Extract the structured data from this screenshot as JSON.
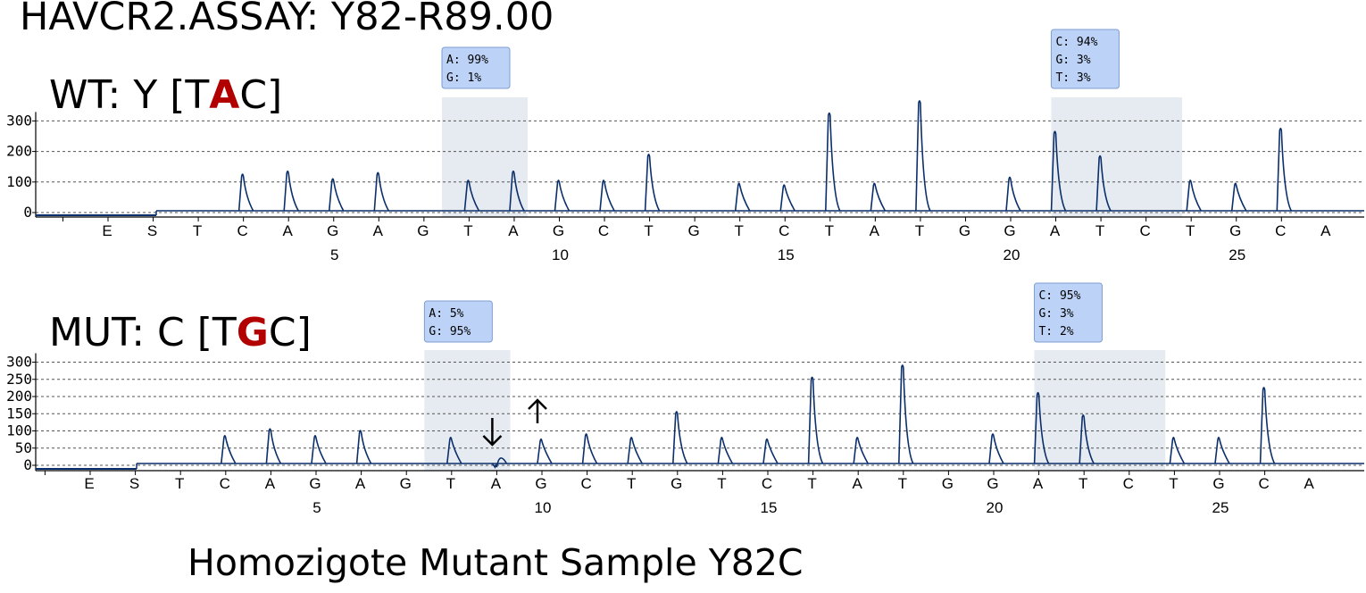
{
  "page_title": "HAVCR2.ASSAY: Y82-R89.00",
  "caption": "Homozigote Mutant Sample Y82C",
  "colors": {
    "trace": "#0b2f6b",
    "highlight_band": "#e6ebf2",
    "tooltip_bg": "#bcd2f6",
    "tooltip_border": "#7f9fd0",
    "mutation_letter": "#b20000"
  },
  "chart_data": [
    {
      "type": "line",
      "label": {
        "prefix": "WT: Y [T",
        "highlight": "A",
        "suffix": "C]"
      },
      "ylim": [
        0,
        380
      ],
      "yticks": [
        0,
        100,
        200,
        300
      ],
      "grid": true,
      "bases": [
        "E",
        "S",
        "T",
        "C",
        "A",
        "G",
        "A",
        "G",
        "T",
        "A",
        "G",
        "C",
        "T",
        "G",
        "T",
        "C",
        "T",
        "A",
        "T",
        "G",
        "G",
        "A",
        "T",
        "C",
        "T",
        "G",
        "C",
        "A"
      ],
      "position_labels": [
        5,
        10,
        15,
        20,
        25
      ],
      "peaks": [
        {
          "x": 4,
          "y": 130
        },
        {
          "x": 5,
          "y": 140
        },
        {
          "x": 6,
          "y": 115
        },
        {
          "x": 7,
          "y": 135
        },
        {
          "x": 9,
          "y": 110
        },
        {
          "x": 10,
          "y": 140
        },
        {
          "x": 11,
          "y": 110
        },
        {
          "x": 12,
          "y": 110
        },
        {
          "x": 13,
          "y": 195
        },
        {
          "x": 15,
          "y": 100
        },
        {
          "x": 16,
          "y": 95
        },
        {
          "x": 17,
          "y": 330
        },
        {
          "x": 18,
          "y": 100
        },
        {
          "x": 19,
          "y": 370
        },
        {
          "x": 21,
          "y": 120
        },
        {
          "x": 22,
          "y": 270
        },
        {
          "x": 23,
          "y": 190
        },
        {
          "x": 25,
          "y": 110
        },
        {
          "x": 26,
          "y": 100
        },
        {
          "x": 27,
          "y": 280
        }
      ],
      "highlight_regions": [
        [
          8.3,
          10.2
        ],
        [
          21.8,
          24.7
        ]
      ],
      "tooltips": [
        {
          "at": 8.3,
          "lines": [
            "A: 99%",
            "G: 1%"
          ]
        },
        {
          "at": 21.8,
          "lines": [
            "C: 94%",
            "G: 3%",
            "T: 3%"
          ]
        }
      ],
      "arrows": []
    },
    {
      "type": "line",
      "label": {
        "prefix": "MUT: C [T",
        "highlight": "G",
        "suffix": "C]"
      },
      "ylim": [
        0,
        320
      ],
      "yticks": [
        0,
        50,
        100,
        150,
        200,
        250,
        300
      ],
      "grid": true,
      "bases": [
        "E",
        "S",
        "T",
        "C",
        "A",
        "G",
        "A",
        "G",
        "T",
        "A",
        "G",
        "C",
        "T",
        "G",
        "T",
        "C",
        "T",
        "A",
        "T",
        "G",
        "G",
        "A",
        "T",
        "C",
        "T",
        "G",
        "C",
        "A"
      ],
      "position_labels": [
        5,
        10,
        15,
        20,
        25
      ],
      "peaks": [
        {
          "x": 4,
          "y": 90
        },
        {
          "x": 5,
          "y": 110
        },
        {
          "x": 6,
          "y": 90
        },
        {
          "x": 7,
          "y": 105
        },
        {
          "x": 9,
          "y": 85
        },
        {
          "x": 10,
          "y": 5
        },
        {
          "x": 11,
          "y": 80
        },
        {
          "x": 12,
          "y": 95
        },
        {
          "x": 13,
          "y": 85
        },
        {
          "x": 14,
          "y": 160
        },
        {
          "x": 15,
          "y": 85
        },
        {
          "x": 16,
          "y": 80
        },
        {
          "x": 17,
          "y": 260
        },
        {
          "x": 18,
          "y": 85
        },
        {
          "x": 19,
          "y": 295
        },
        {
          "x": 21,
          "y": 95
        },
        {
          "x": 22,
          "y": 215
        },
        {
          "x": 23,
          "y": 150
        },
        {
          "x": 25,
          "y": 85
        },
        {
          "x": 26,
          "y": 85
        },
        {
          "x": 27,
          "y": 230
        }
      ],
      "highlight_regions": [
        [
          8.3,
          10.2
        ],
        [
          21.8,
          24.7
        ]
      ],
      "tooltips": [
        {
          "at": 8.3,
          "lines": [
            "A: 5%",
            "G: 95%"
          ]
        },
        {
          "at": 21.8,
          "lines": [
            "C: 95%",
            "G: 3%",
            "T: 2%"
          ]
        }
      ],
      "arrows": [
        {
          "x": 10,
          "direction": "down"
        },
        {
          "x": 11,
          "direction": "up"
        }
      ]
    }
  ]
}
